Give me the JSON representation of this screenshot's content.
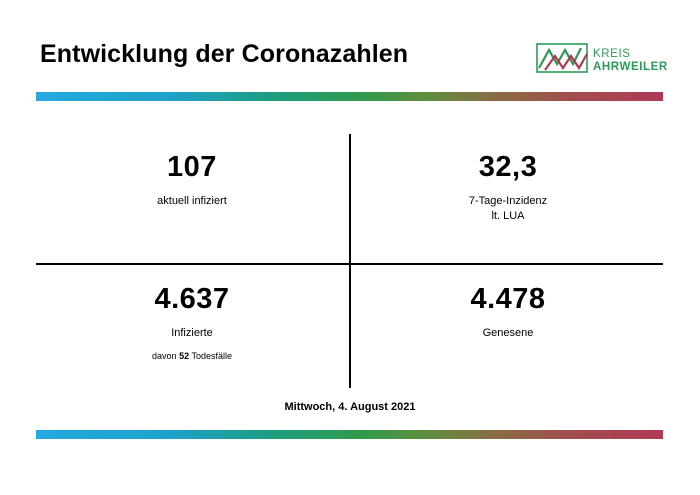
{
  "header": {
    "title": "Entwicklung der Coronazahlen",
    "logo": {
      "line1": "KREIS",
      "line2": "AHRWEILER",
      "icon": "kreis-ahrweiler-logo-icon",
      "colors": {
        "green": "#2e9a57",
        "red": "#b03a55"
      }
    }
  },
  "stats": {
    "active": {
      "value": "107",
      "label": "aktuell infiziert"
    },
    "incidence": {
      "value": "32,3",
      "label_line1": "7-Tage-Inzidenz",
      "label_line2": "lt. LUA"
    },
    "infected": {
      "value": "4.637",
      "label": "Infizierte",
      "deaths_prefix": "davon",
      "deaths_value": "52",
      "deaths_suffix": "Todesfälle"
    },
    "recovered": {
      "value": "4.478",
      "label": "Genesene"
    }
  },
  "footer": {
    "date": "Mittwoch, 4. August 2021"
  },
  "colors": {
    "bar_start": "#25a9e0",
    "bar_mid": "#2f9a4c",
    "bar_end": "#b03a55"
  }
}
